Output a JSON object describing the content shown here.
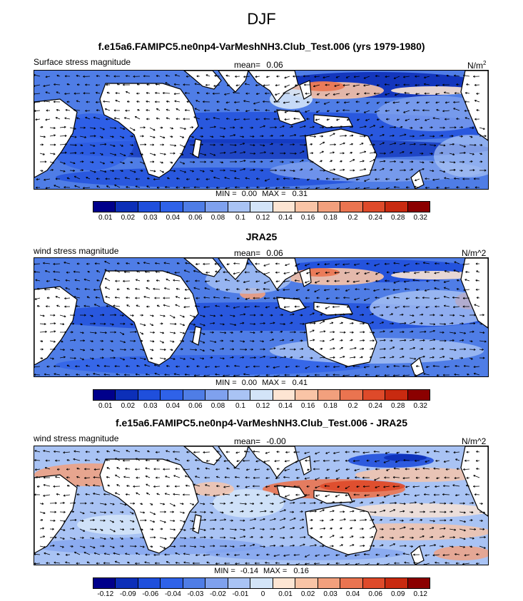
{
  "figure_title": "DJF",
  "chart_data": [
    {
      "type": "heatmap",
      "title": "f.e15a6.FAMIPC5.ne0np4-VarMeshNH3.Club_Test.006 (yrs 1979-1980)",
      "left_label": "Surface stress magnitude",
      "mean_label": "mean=",
      "mean_value": "0.06",
      "units": "N/m",
      "units_sup": "2",
      "min_label": "MIN =",
      "min_value": "0.00",
      "max_label": "MAX =",
      "max_value": "0.31",
      "levels": [
        "0.01",
        "0.02",
        "0.03",
        "0.04",
        "0.06",
        "0.08",
        "0.1",
        "0.12",
        "0.14",
        "0.16",
        "0.18",
        "0.2",
        "0.24",
        "0.28",
        "0.32"
      ],
      "colors": [
        "#00008b",
        "#0c2fb8",
        "#1f4fdc",
        "#2f62e8",
        "#4f7de6",
        "#7fa1ee",
        "#a9c3f4",
        "#d3e4f8",
        "#fde5d3",
        "#f9c4a6",
        "#f2a07d",
        "#ea7450",
        "#de4a2a",
        "#c82a10",
        "#8b0000"
      ]
    },
    {
      "type": "heatmap",
      "title": "JRA25",
      "left_label": "wind stress magnitude",
      "mean_label": "mean=",
      "mean_value": "0.06",
      "units": "N/m^2",
      "min_label": "MIN =",
      "min_value": "0.00",
      "max_label": "MAX =",
      "max_value": "0.41",
      "levels": [
        "0.01",
        "0.02",
        "0.03",
        "0.04",
        "0.06",
        "0.08",
        "0.1",
        "0.12",
        "0.14",
        "0.16",
        "0.18",
        "0.2",
        "0.24",
        "0.28",
        "0.32"
      ],
      "colors": [
        "#00008b",
        "#0c2fb8",
        "#1f4fdc",
        "#2f62e8",
        "#4f7de6",
        "#7fa1ee",
        "#a9c3f4",
        "#d3e4f8",
        "#fde5d3",
        "#f9c4a6",
        "#f2a07d",
        "#ea7450",
        "#de4a2a",
        "#c82a10",
        "#8b0000"
      ]
    },
    {
      "type": "heatmap",
      "title": "f.e15a6.FAMIPC5.ne0np4-VarMeshNH3.Club_Test.006 - JRA25",
      "left_label": "wind stress magnitude",
      "mean_label": "mean=",
      "mean_value": "-0.00",
      "units": "N/m^2",
      "min_label": "MIN =",
      "min_value": "-0.14",
      "max_label": "MAX =",
      "max_value": "0.16",
      "levels": [
        "-0.12",
        "-0.09",
        "-0.06",
        "-0.04",
        "-0.03",
        "-0.02",
        "-0.01",
        "0",
        "0.01",
        "0.02",
        "0.03",
        "0.04",
        "0.06",
        "0.09",
        "0.12"
      ],
      "colors": [
        "#00008b",
        "#0c2fb8",
        "#1f4fdc",
        "#2f62e8",
        "#4f7de6",
        "#7fa1ee",
        "#a9c3f4",
        "#d3e4f8",
        "#fde5d3",
        "#f9c4a6",
        "#f2a07d",
        "#ea7450",
        "#de4a2a",
        "#c82a10",
        "#8b0000"
      ]
    }
  ]
}
